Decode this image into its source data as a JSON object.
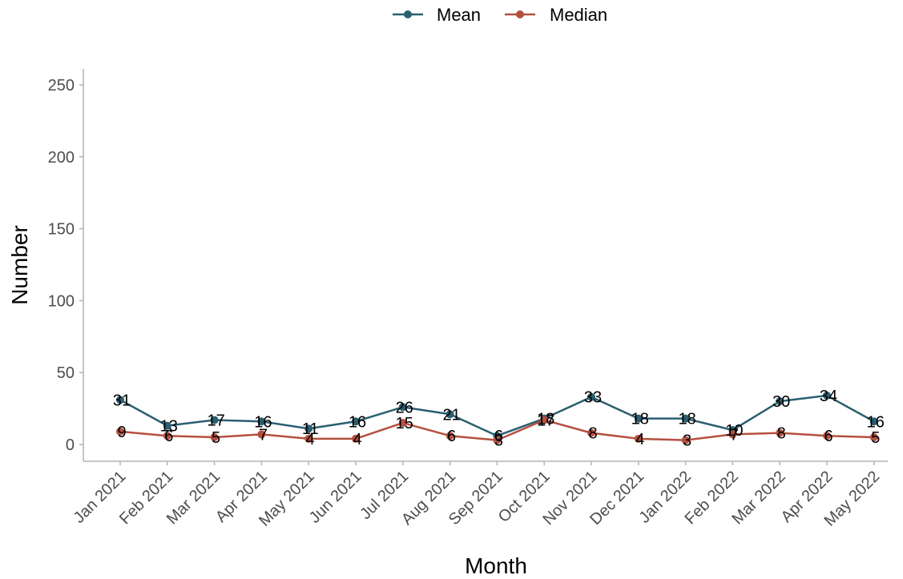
{
  "chart_data": {
    "type": "line",
    "xlabel": "Month",
    "ylabel": "Number",
    "ylim": [
      0,
      250
    ],
    "yticks": [
      0,
      50,
      100,
      150,
      200,
      250
    ],
    "categories": [
      "Jan 2021",
      "Feb 2021",
      "Mar 2021",
      "Apr 2021",
      "May 2021",
      "Jun 2021",
      "Jul 2021",
      "Aug 2021",
      "Sep 2021",
      "Oct 2021",
      "Nov 2021",
      "Dec 2021",
      "Jan 2022",
      "Feb 2022",
      "Mar 2022",
      "Apr 2022",
      "May 2022"
    ],
    "series": [
      {
        "name": "Mean",
        "color": "#2a5f70",
        "values": [
          31,
          13,
          17,
          16,
          11,
          16,
          26,
          21,
          6,
          18,
          33,
          18,
          18,
          10,
          30,
          34,
          16
        ]
      },
      {
        "name": "Median",
        "color": "#b5503f",
        "values": [
          9,
          6,
          5,
          7,
          4,
          4,
          15,
          6,
          3,
          17,
          8,
          4,
          3,
          7,
          8,
          6,
          5
        ]
      }
    ],
    "legend": "top",
    "grid": false
  }
}
